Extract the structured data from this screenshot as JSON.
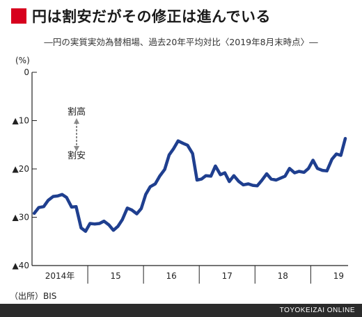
{
  "header": {
    "title": "円は割安だがその修正は進んでいる",
    "subtitle": "―円の実質実効為替相場、過去20年平均対比〈2019年8月末時点〉―"
  },
  "source": "（出所）BIS",
  "footer": {
    "brand": "TOYOKEIZAI ONLINE"
  },
  "annotations": {
    "expensive": "割高",
    "cheap": "割安"
  },
  "colors": {
    "line": "#1f3f8f",
    "accent": "#d7001e",
    "footer_bg": "#2b2b2b",
    "arrow": "#8a8a8a"
  },
  "chart_data": {
    "type": "line",
    "unit_label": "(%)",
    "ylim": [
      -40,
      0
    ],
    "yticks": [
      0,
      -10,
      -20,
      -30,
      -40
    ],
    "ytick_labels": [
      "0",
      "▲10",
      "▲20",
      "▲30",
      "▲40"
    ],
    "xlim": [
      2014.0,
      2019.67
    ],
    "xticks": [
      {
        "label": "2014年",
        "x": 2014.5
      },
      {
        "label": "15",
        "x": 2015.5
      },
      {
        "label": "16",
        "x": 2016.5
      },
      {
        "label": "17",
        "x": 2017.5
      },
      {
        "label": "18",
        "x": 2018.5
      },
      {
        "label": "19",
        "x": 2019.5
      }
    ],
    "year_separators": [
      2015,
      2016,
      2017,
      2018,
      2019
    ],
    "grid": false,
    "series": [
      {
        "values": [
          [
            2014.04,
            -29.2
          ],
          [
            2014.12,
            -28.0
          ],
          [
            2014.21,
            -27.8
          ],
          [
            2014.29,
            -26.5
          ],
          [
            2014.38,
            -25.7
          ],
          [
            2014.46,
            -25.6
          ],
          [
            2014.54,
            -25.3
          ],
          [
            2014.62,
            -25.9
          ],
          [
            2014.71,
            -27.9
          ],
          [
            2014.79,
            -27.8
          ],
          [
            2014.88,
            -32.2
          ],
          [
            2014.96,
            -32.9
          ],
          [
            2015.04,
            -31.3
          ],
          [
            2015.12,
            -31.4
          ],
          [
            2015.21,
            -31.3
          ],
          [
            2015.29,
            -30.8
          ],
          [
            2015.38,
            -31.6
          ],
          [
            2015.46,
            -32.7
          ],
          [
            2015.54,
            -31.9
          ],
          [
            2015.62,
            -30.5
          ],
          [
            2015.71,
            -28.1
          ],
          [
            2015.79,
            -28.5
          ],
          [
            2015.88,
            -29.3
          ],
          [
            2015.96,
            -28.2
          ],
          [
            2016.04,
            -25.3
          ],
          [
            2016.12,
            -23.7
          ],
          [
            2016.21,
            -23.1
          ],
          [
            2016.29,
            -21.5
          ],
          [
            2016.38,
            -20.1
          ],
          [
            2016.46,
            -17.1
          ],
          [
            2016.54,
            -15.8
          ],
          [
            2016.62,
            -14.2
          ],
          [
            2016.71,
            -14.7
          ],
          [
            2016.79,
            -15.1
          ],
          [
            2016.88,
            -16.8
          ],
          [
            2016.96,
            -22.3
          ],
          [
            2017.04,
            -22.1
          ],
          [
            2017.12,
            -21.4
          ],
          [
            2017.21,
            -21.5
          ],
          [
            2017.29,
            -19.4
          ],
          [
            2017.38,
            -21.2
          ],
          [
            2017.46,
            -20.8
          ],
          [
            2017.54,
            -22.6
          ],
          [
            2017.62,
            -21.4
          ],
          [
            2017.71,
            -22.6
          ],
          [
            2017.79,
            -23.3
          ],
          [
            2017.88,
            -23.1
          ],
          [
            2017.96,
            -23.4
          ],
          [
            2018.04,
            -23.5
          ],
          [
            2018.12,
            -22.4
          ],
          [
            2018.21,
            -21.0
          ],
          [
            2018.29,
            -22.1
          ],
          [
            2018.38,
            -22.3
          ],
          [
            2018.46,
            -21.9
          ],
          [
            2018.54,
            -21.5
          ],
          [
            2018.62,
            -19.9
          ],
          [
            2018.71,
            -20.8
          ],
          [
            2018.79,
            -20.5
          ],
          [
            2018.88,
            -20.7
          ],
          [
            2018.96,
            -19.9
          ],
          [
            2019.04,
            -18.2
          ],
          [
            2019.12,
            -19.9
          ],
          [
            2019.21,
            -20.3
          ],
          [
            2019.29,
            -20.4
          ],
          [
            2019.38,
            -18.0
          ],
          [
            2019.46,
            -16.9
          ],
          [
            2019.54,
            -17.2
          ],
          [
            2019.62,
            -13.7
          ]
        ]
      }
    ]
  }
}
